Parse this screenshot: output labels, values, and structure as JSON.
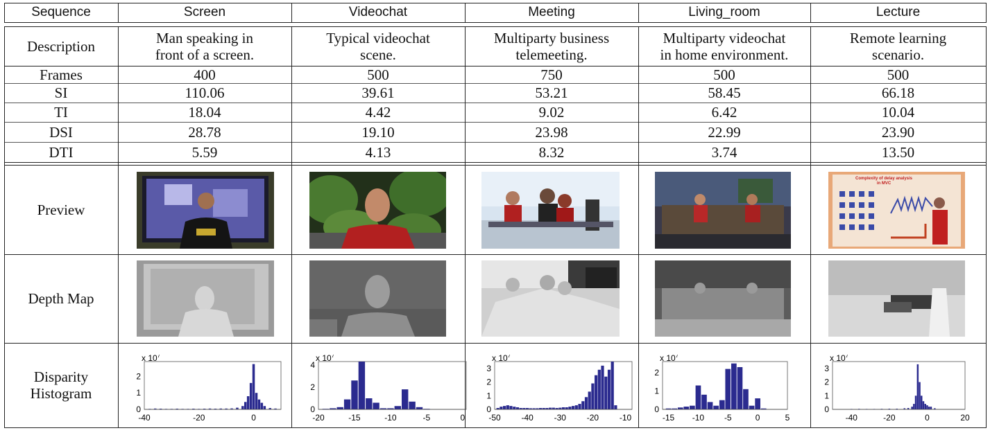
{
  "table": {
    "header": [
      "Sequence",
      "Screen",
      "Videochat",
      "Meeting",
      "Living_room",
      "Lecture"
    ],
    "rows": [
      {
        "label": "Description",
        "values": [
          "Man speaking in\nfront of a screen.",
          "Typical videochat\nscene.",
          "Multiparty business\ntelemeeting.",
          "Multiparty videochat\nin home environment.",
          "Remote learning\nscenario."
        ]
      },
      {
        "label": "Frames",
        "values": [
          "400",
          "500",
          "750",
          "500",
          "500"
        ]
      },
      {
        "label": "SI",
        "values": [
          "110.06",
          "39.61",
          "53.21",
          "58.45",
          "66.18"
        ]
      },
      {
        "label": "TI",
        "values": [
          "18.04",
          "4.42",
          "9.02",
          "6.42",
          "10.04"
        ]
      },
      {
        "label": "DSI",
        "values": [
          "28.78",
          "19.10",
          "23.98",
          "22.99",
          "23.90"
        ]
      },
      {
        "label": "DTI",
        "values": [
          "5.59",
          "4.13",
          "8.32",
          "3.74",
          "13.50"
        ]
      }
    ],
    "preview_label": "Preview",
    "depth_label": "Depth Map",
    "hist_label": "Disparity\nHistogram",
    "previews": [
      "Screen preview",
      "Videochat preview",
      "Meeting preview",
      "Living_room preview",
      "Lecture preview"
    ],
    "lecture_slide_text": "Complexity of delay analysis\nin MVC",
    "depth_maps": [
      "Screen depth map",
      "Videochat depth map",
      "Meeting depth map",
      "Living_room depth map",
      "Lecture depth map"
    ]
  },
  "colors": {
    "bar": "#2b2b8f",
    "line": "#222222"
  },
  "chart_data": [
    {
      "type": "bar",
      "scale_label": "x 10",
      "scale_exp": "7",
      "xlim": [
        -40,
        10
      ],
      "ylim": [
        0,
        2.9
      ],
      "xticks": [
        "-40",
        "-20",
        "0"
      ],
      "xtick_values": [
        -40,
        -20,
        0
      ],
      "yticks": [
        "0",
        "1",
        "2"
      ],
      "ytick_values": [
        0,
        1,
        2
      ],
      "x": [
        -38,
        -36,
        -34,
        -32,
        -30,
        -28,
        -26,
        -24,
        -22,
        -20,
        -18,
        -16,
        -14,
        -12,
        -10,
        -8,
        -6,
        -4,
        -3,
        -2,
        -1,
        0,
        1,
        2,
        3,
        4,
        6,
        8
      ],
      "values": [
        0.03,
        0.05,
        0.04,
        0.03,
        0.03,
        0.04,
        0.03,
        0.03,
        0.04,
        0.03,
        0.04,
        0.05,
        0.04,
        0.05,
        0.05,
        0.06,
        0.1,
        0.2,
        0.45,
        0.8,
        1.6,
        2.75,
        1.0,
        0.6,
        0.4,
        0.2,
        0.08,
        0.05
      ],
      "bar_width": 1
    },
    {
      "type": "bar",
      "scale_label": "x 10",
      "scale_exp": "7",
      "xlim": [
        -20,
        0.5
      ],
      "ylim": [
        0,
        4.3
      ],
      "xticks": [
        "-20",
        "-15",
        "-10",
        "-5",
        "0"
      ],
      "xtick_values": [
        -20,
        -15,
        -10,
        -5,
        0
      ],
      "yticks": [
        "0",
        "2",
        "4"
      ],
      "ytick_values": [
        0,
        2,
        4
      ],
      "x": [
        -19,
        -18,
        -17,
        -16,
        -15,
        -14,
        -13,
        -12,
        -11,
        -10,
        -9,
        -8,
        -7,
        -6,
        -5
      ],
      "values": [
        0.05,
        0.1,
        0.2,
        0.9,
        2.6,
        4.3,
        1.0,
        0.6,
        0.1,
        0.1,
        0.3,
        1.8,
        0.7,
        0.2,
        0.05
      ],
      "bar_width": 1
    },
    {
      "type": "bar",
      "scale_label": "x 10",
      "scale_exp": "7",
      "xlim": [
        -50,
        -8
      ],
      "ylim": [
        0,
        3.5
      ],
      "xticks": [
        "-50",
        "-40",
        "-30",
        "-20",
        "-10"
      ],
      "xtick_values": [
        -50,
        -40,
        -30,
        -20,
        -10
      ],
      "yticks": [
        "0",
        "1",
        "2",
        "3"
      ],
      "ytick_values": [
        0,
        1,
        2,
        3
      ],
      "x": [
        -49,
        -48,
        -47,
        -46,
        -45,
        -44,
        -43,
        -42,
        -41,
        -40,
        -39,
        -38,
        -37,
        -36,
        -35,
        -34,
        -33,
        -32,
        -31,
        -30,
        -29,
        -28,
        -27,
        -26,
        -25,
        -24,
        -23,
        -22,
        -21,
        -20,
        -19,
        -18,
        -17,
        -16,
        -15,
        -14,
        -13
      ],
      "values": [
        0.1,
        0.2,
        0.25,
        0.3,
        0.25,
        0.2,
        0.15,
        0.1,
        0.1,
        0.1,
        0.08,
        0.08,
        0.08,
        0.1,
        0.1,
        0.1,
        0.12,
        0.12,
        0.1,
        0.12,
        0.15,
        0.15,
        0.2,
        0.25,
        0.3,
        0.4,
        0.6,
        0.9,
        1.3,
        1.9,
        2.5,
        2.9,
        3.2,
        2.4,
        2.9,
        3.5,
        0.3
      ],
      "bar_width": 1
    },
    {
      "type": "bar",
      "scale_label": "x 10",
      "scale_exp": "7",
      "xlim": [
        -16,
        5
      ],
      "ylim": [
        0,
        2.6
      ],
      "xticks": [
        "-15",
        "-10",
        "-5",
        "0",
        "5"
      ],
      "xtick_values": [
        -15,
        -10,
        -5,
        0,
        5
      ],
      "yticks": [
        "0",
        "1",
        "2"
      ],
      "ytick_values": [
        0,
        1,
        2
      ],
      "x": [
        -15,
        -14,
        -13,
        -12,
        -11,
        -10,
        -9,
        -8,
        -7,
        -6,
        -5,
        -4,
        -3,
        -2,
        -1,
        0,
        1
      ],
      "values": [
        0.05,
        0.05,
        0.1,
        0.15,
        0.2,
        1.3,
        0.8,
        0.4,
        0.2,
        0.5,
        2.2,
        2.5,
        2.3,
        1.1,
        0.2,
        0.6,
        0.05
      ],
      "bar_width": 1
    },
    {
      "type": "bar",
      "scale_label": "x 10",
      "scale_exp": "7",
      "xlim": [
        -50,
        20
      ],
      "ylim": [
        0,
        3.5
      ],
      "xticks": [
        "-40",
        "-20",
        "0",
        "20"
      ],
      "xtick_values": [
        -40,
        -20,
        0,
        20
      ],
      "yticks": [
        "0",
        "1",
        "2",
        "3"
      ],
      "ytick_values": [
        0,
        1,
        2,
        3
      ],
      "x": [
        -40,
        -36,
        -32,
        -28,
        -24,
        -20,
        -16,
        -12,
        -10,
        -8,
        -7,
        -6,
        -5,
        -4,
        -3,
        -2,
        -1,
        0,
        1,
        2,
        4
      ],
      "values": [
        0.03,
        0.04,
        0.03,
        0.03,
        0.04,
        0.05,
        0.05,
        0.08,
        0.1,
        0.2,
        0.4,
        1.0,
        3.3,
        2.0,
        1.0,
        0.6,
        0.4,
        0.3,
        0.2,
        0.2,
        0.08
      ],
      "bar_width": 1
    }
  ]
}
